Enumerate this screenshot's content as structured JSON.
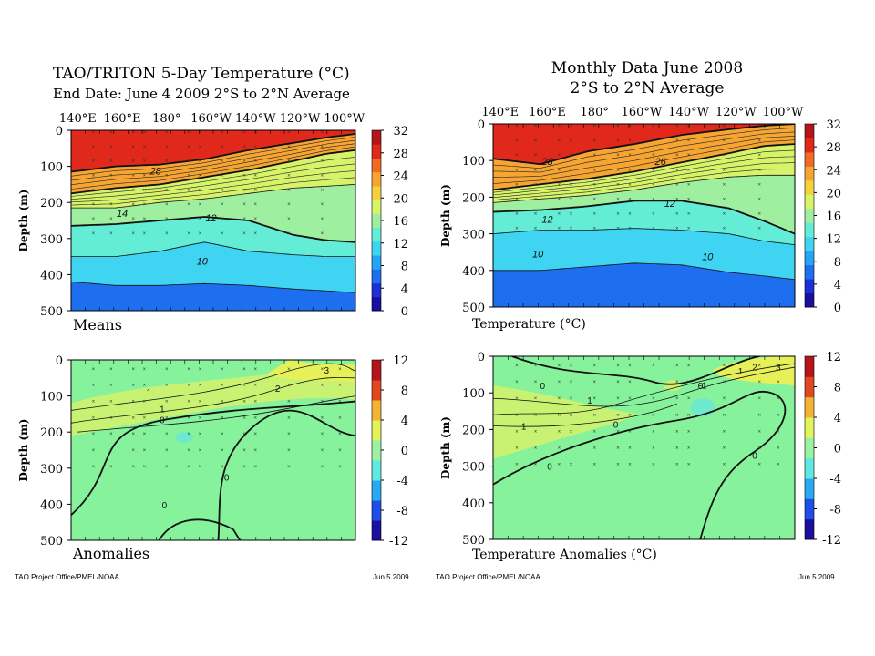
{
  "left": {
    "title_line1": "TAO/TRITON 5-Day Temperature (°C)",
    "title_line2": "End Date: June 4 2009   2°S to 2°N Average",
    "footer_left": "TAO Project Office/PMEL/NOAA",
    "footer_right": "Jun  5 2009"
  },
  "right": {
    "title_line1": "Monthly Data June 2008",
    "title_line2": "2°S to 2°N Average",
    "footer_left": "TAO Project Office/PMEL/NOAA",
    "footer_right": "Jun  5 2009"
  },
  "colors": {
    "means_scale": [
      "#1a0f9e",
      "#1f2fd8",
      "#1e6ff0",
      "#23a6f5",
      "#3ed4f2",
      "#63ecd6",
      "#9ef0a0",
      "#d6f36a",
      "#f5d13c",
      "#f7a532",
      "#f26b24",
      "#e0281b",
      "#b5141a"
    ],
    "anom_scale": [
      "#1a0f9e",
      "#1e4fe6",
      "#28a9f2",
      "#5fe9e0",
      "#9cf2a4",
      "#e2f35c",
      "#f4b334",
      "#e04820",
      "#b5141a"
    ],
    "anom_background": "#86f29c"
  },
  "chart_data": [
    {
      "id": "left-means",
      "type": "heatmap",
      "panel_label": "Means",
      "xticks": [
        "140°E",
        "160°E",
        "180°",
        "160°W",
        "140°W",
        "120°W",
        "100°W"
      ],
      "xlim_deg_east": [
        137,
        265
      ],
      "ylim_m": [
        0,
        500
      ],
      "yticks": [
        "0",
        "100",
        "200",
        "300",
        "400",
        "500"
      ],
      "ylabel": "Depth (m)",
      "colorbar": {
        "ticks": [
          "32",
          "28",
          "24",
          "20",
          "16",
          "12",
          "8",
          "4",
          "0"
        ],
        "range": [
          0,
          32
        ]
      },
      "contour_labels": [
        "28",
        "14",
        "12",
        "10"
      ],
      "depth_of_isotherm": {
        "x": [
          137,
          157,
          177,
          197,
          217,
          237,
          252,
          265
        ],
        "28": [
          115,
          100,
          95,
          80,
          55,
          35,
          20,
          10
        ],
        "20": [
          175,
          160,
          150,
          130,
          110,
          85,
          65,
          55
        ],
        "14": [
          215,
          215,
          200,
          190,
          175,
          160,
          155,
          150
        ],
        "12": [
          265,
          260,
          250,
          240,
          250,
          290,
          305,
          310
        ],
        "10": [
          350,
          350,
          335,
          310,
          335,
          345,
          350,
          350
        ],
        "8": [
          420,
          430,
          430,
          425,
          430,
          440,
          445,
          450
        ]
      }
    },
    {
      "id": "right-means",
      "type": "heatmap",
      "panel_label": "Temperature  (°C)",
      "xticks": [
        "140°E",
        "160°E",
        "180°",
        "160°W",
        "140°W",
        "120°W",
        "100°W"
      ],
      "xlim_deg_east": [
        137,
        265
      ],
      "ylim_m": [
        0,
        500
      ],
      "yticks": [
        "0",
        "100",
        "200",
        "300",
        "400",
        "500"
      ],
      "ylabel": "Depth (m)",
      "colorbar": {
        "ticks": [
          "32",
          "28",
          "24",
          "20",
          "16",
          "12",
          "8",
          "4",
          "0"
        ],
        "range": [
          0,
          32
        ]
      },
      "contour_labels": [
        "28",
        "26",
        "12",
        "10",
        "10"
      ],
      "depth_of_isotherm": {
        "x": [
          137,
          157,
          177,
          197,
          217,
          237,
          252,
          265
        ],
        "28": [
          95,
          110,
          75,
          55,
          30,
          15,
          5,
          0
        ],
        "20": [
          180,
          165,
          150,
          130,
          105,
          80,
          60,
          55
        ],
        "14": [
          215,
          205,
          195,
          180,
          160,
          145,
          140,
          140
        ],
        "12": [
          240,
          235,
          225,
          210,
          210,
          230,
          265,
          300
        ],
        "10": [
          300,
          290,
          290,
          285,
          290,
          300,
          320,
          330
        ],
        "8": [
          400,
          400,
          390,
          380,
          385,
          405,
          415,
          425
        ]
      }
    },
    {
      "id": "left-anomalies",
      "type": "heatmap",
      "panel_label": "Anomalies",
      "xlim_deg_east": [
        137,
        265
      ],
      "ylim_m": [
        0,
        500
      ],
      "yticks": [
        "0",
        "100",
        "200",
        "300",
        "400",
        "500"
      ],
      "ylabel": "Depth (m)",
      "colorbar": {
        "ticks": [
          "12",
          "8",
          "4",
          "0",
          "-4",
          "-8",
          "-12"
        ],
        "range": [
          -12,
          12
        ]
      },
      "contour_labels": [
        "1",
        "1",
        "2",
        "3",
        "0",
        "0",
        "0"
      ]
    },
    {
      "id": "right-anomalies",
      "type": "heatmap",
      "panel_label": "Temperature Anomalies (°C)",
      "xlim_deg_east": [
        137,
        265
      ],
      "ylim_m": [
        0,
        500
      ],
      "yticks": [
        "0",
        "100",
        "200",
        "300",
        "400",
        "500"
      ],
      "ylabel": "Depth (m)",
      "colorbar": {
        "ticks": [
          "12",
          "8",
          "4",
          "0",
          "-4",
          "-8",
          "-12"
        ],
        "range": [
          -12,
          12
        ]
      },
      "contour_labels": [
        "0",
        "1",
        "2",
        "3",
        "1",
        "-1",
        "0",
        "0",
        "0",
        "-1",
        "0"
      ]
    }
  ]
}
